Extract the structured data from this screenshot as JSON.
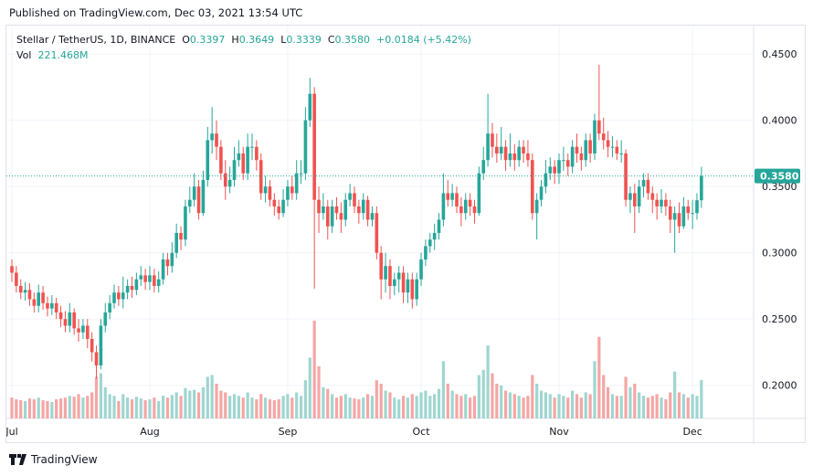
{
  "header": {
    "published": "Published on TradingView.com, Dec 03, 2021 13:54 UTC"
  },
  "legend": {
    "symbol": "Stellar / TetherUS, 1D, BINANCE",
    "o_label": "O",
    "o": "0.3397",
    "h_label": "H",
    "h": "0.3649",
    "l_label": "L",
    "l": "0.3339",
    "c_label": "C",
    "c": "0.3580",
    "change": "+0.0184 (+5.42%)",
    "vol_label": "Vol",
    "vol": "221.468M"
  },
  "brand": {
    "name": "TradingView"
  },
  "colors": {
    "up": "#26a69a",
    "down": "#ef5350",
    "up_volume": "#9fd6d0",
    "down_volume": "#f5a6a4",
    "grid": "#f0f3fa"
  },
  "chart_data": {
    "type": "candlestick",
    "symbol": "XLMUSDT",
    "interval": "1D",
    "first_date": "2021-07-01",
    "last_date": "2021-12-03",
    "price_ticks": [
      "0.4500",
      "0.4000",
      "0.3500",
      "0.3000",
      "0.2500",
      "0.2000"
    ],
    "ylim": [
      0.175,
      0.4715
    ],
    "time_ticks": [
      {
        "label": "Jul",
        "date": "2021-07-01"
      },
      {
        "label": "Aug",
        "date": "2021-08-01"
      },
      {
        "label": "Sep",
        "date": "2021-09-01"
      },
      {
        "label": "Oct",
        "date": "2021-10-01"
      },
      {
        "label": "Nov",
        "date": "2021-11-01"
      },
      {
        "label": "Dec",
        "date": "2021-12-01"
      }
    ],
    "last_price": "0.3580",
    "columns": [
      "open",
      "high",
      "low",
      "close",
      "volume_M"
    ],
    "candles": [
      [
        0.29,
        0.295,
        0.278,
        0.285,
        120
      ],
      [
        0.285,
        0.29,
        0.27,
        0.275,
        110
      ],
      [
        0.275,
        0.28,
        0.265,
        0.27,
        105
      ],
      [
        0.27,
        0.278,
        0.264,
        0.272,
        100
      ],
      [
        0.272,
        0.277,
        0.26,
        0.265,
        115
      ],
      [
        0.265,
        0.27,
        0.255,
        0.26,
        110
      ],
      [
        0.26,
        0.276,
        0.255,
        0.27,
        120
      ],
      [
        0.27,
        0.275,
        0.257,
        0.262,
        105
      ],
      [
        0.262,
        0.267,
        0.252,
        0.258,
        100
      ],
      [
        0.258,
        0.268,
        0.253,
        0.262,
        95
      ],
      [
        0.262,
        0.266,
        0.25,
        0.255,
        110
      ],
      [
        0.255,
        0.26,
        0.244,
        0.25,
        115
      ],
      [
        0.25,
        0.256,
        0.24,
        0.245,
        120
      ],
      [
        0.245,
        0.262,
        0.24,
        0.255,
        130
      ],
      [
        0.255,
        0.258,
        0.238,
        0.243,
        125
      ],
      [
        0.243,
        0.25,
        0.233,
        0.24,
        140
      ],
      [
        0.24,
        0.25,
        0.235,
        0.245,
        120
      ],
      [
        0.245,
        0.25,
        0.228,
        0.235,
        130
      ],
      [
        0.235,
        0.24,
        0.218,
        0.225,
        150
      ],
      [
        0.225,
        0.23,
        0.205,
        0.215,
        240
      ],
      [
        0.215,
        0.25,
        0.212,
        0.245,
        260
      ],
      [
        0.245,
        0.262,
        0.24,
        0.255,
        180
      ],
      [
        0.255,
        0.268,
        0.25,
        0.262,
        140
      ],
      [
        0.262,
        0.276,
        0.258,
        0.27,
        130
      ],
      [
        0.27,
        0.275,
        0.26,
        0.265,
        100
      ],
      [
        0.265,
        0.282,
        0.258,
        0.27,
        140
      ],
      [
        0.27,
        0.28,
        0.265,
        0.275,
        120
      ],
      [
        0.275,
        0.282,
        0.266,
        0.272,
        110
      ],
      [
        0.272,
        0.285,
        0.268,
        0.28,
        125
      ],
      [
        0.28,
        0.29,
        0.275,
        0.283,
        115
      ],
      [
        0.283,
        0.288,
        0.272,
        0.278,
        105
      ],
      [
        0.278,
        0.29,
        0.272,
        0.283,
        110
      ],
      [
        0.283,
        0.288,
        0.27,
        0.275,
        120
      ],
      [
        0.275,
        0.286,
        0.27,
        0.28,
        100
      ],
      [
        0.28,
        0.3,
        0.276,
        0.295,
        130
      ],
      [
        0.295,
        0.3,
        0.283,
        0.29,
        120
      ],
      [
        0.29,
        0.308,
        0.285,
        0.3,
        135
      ],
      [
        0.3,
        0.322,
        0.296,
        0.315,
        150
      ],
      [
        0.315,
        0.32,
        0.302,
        0.31,
        130
      ],
      [
        0.31,
        0.34,
        0.305,
        0.335,
        175
      ],
      [
        0.335,
        0.35,
        0.33,
        0.34,
        160
      ],
      [
        0.34,
        0.36,
        0.335,
        0.35,
        165
      ],
      [
        0.35,
        0.355,
        0.325,
        0.33,
        150
      ],
      [
        0.33,
        0.362,
        0.328,
        0.355,
        180
      ],
      [
        0.355,
        0.395,
        0.35,
        0.385,
        240
      ],
      [
        0.385,
        0.41,
        0.375,
        0.39,
        250
      ],
      [
        0.39,
        0.4,
        0.37,
        0.38,
        200
      ],
      [
        0.38,
        0.385,
        0.355,
        0.36,
        160
      ],
      [
        0.36,
        0.37,
        0.34,
        0.35,
        150
      ],
      [
        0.35,
        0.365,
        0.345,
        0.355,
        130
      ],
      [
        0.355,
        0.38,
        0.35,
        0.37,
        140
      ],
      [
        0.37,
        0.385,
        0.365,
        0.375,
        130
      ],
      [
        0.375,
        0.38,
        0.355,
        0.36,
        120
      ],
      [
        0.36,
        0.39,
        0.355,
        0.38,
        150
      ],
      [
        0.38,
        0.39,
        0.37,
        0.38,
        120
      ],
      [
        0.38,
        0.385,
        0.362,
        0.37,
        110
      ],
      [
        0.37,
        0.375,
        0.34,
        0.345,
        140
      ],
      [
        0.345,
        0.358,
        0.338,
        0.35,
        120
      ],
      [
        0.35,
        0.355,
        0.335,
        0.34,
        110
      ],
      [
        0.34,
        0.345,
        0.328,
        0.335,
        105
      ],
      [
        0.335,
        0.34,
        0.325,
        0.33,
        110
      ],
      [
        0.33,
        0.348,
        0.327,
        0.34,
        130
      ],
      [
        0.34,
        0.355,
        0.335,
        0.35,
        140
      ],
      [
        0.35,
        0.358,
        0.34,
        0.345,
        120
      ],
      [
        0.345,
        0.37,
        0.34,
        0.36,
        150
      ],
      [
        0.36,
        0.37,
        0.352,
        0.36,
        130
      ],
      [
        0.36,
        0.41,
        0.355,
        0.4,
        220
      ],
      [
        0.4,
        0.432,
        0.395,
        0.42,
        350
      ],
      [
        0.42,
        0.425,
        0.273,
        0.34,
        563
      ],
      [
        0.34,
        0.35,
        0.315,
        0.33,
        300
      ],
      [
        0.33,
        0.345,
        0.325,
        0.335,
        180
      ],
      [
        0.335,
        0.34,
        0.31,
        0.32,
        170
      ],
      [
        0.32,
        0.34,
        0.315,
        0.335,
        140
      ],
      [
        0.335,
        0.342,
        0.325,
        0.33,
        120
      ],
      [
        0.33,
        0.338,
        0.315,
        0.325,
        130
      ],
      [
        0.325,
        0.345,
        0.32,
        0.34,
        140
      ],
      [
        0.34,
        0.352,
        0.335,
        0.345,
        120
      ],
      [
        0.345,
        0.35,
        0.33,
        0.335,
        115
      ],
      [
        0.335,
        0.34,
        0.322,
        0.33,
        110
      ],
      [
        0.33,
        0.345,
        0.325,
        0.34,
        120
      ],
      [
        0.34,
        0.343,
        0.32,
        0.325,
        140
      ],
      [
        0.325,
        0.335,
        0.32,
        0.33,
        130
      ],
      [
        0.33,
        0.335,
        0.295,
        0.3,
        220
      ],
      [
        0.3,
        0.305,
        0.265,
        0.28,
        200
      ],
      [
        0.28,
        0.3,
        0.27,
        0.29,
        160
      ],
      [
        0.29,
        0.295,
        0.265,
        0.275,
        150
      ],
      [
        0.275,
        0.285,
        0.268,
        0.28,
        120
      ],
      [
        0.28,
        0.29,
        0.27,
        0.285,
        110
      ],
      [
        0.285,
        0.29,
        0.262,
        0.27,
        130
      ],
      [
        0.27,
        0.285,
        0.262,
        0.28,
        120
      ],
      [
        0.28,
        0.285,
        0.258,
        0.265,
        140
      ],
      [
        0.265,
        0.285,
        0.26,
        0.28,
        130
      ],
      [
        0.28,
        0.3,
        0.275,
        0.295,
        150
      ],
      [
        0.295,
        0.31,
        0.29,
        0.305,
        160
      ],
      [
        0.305,
        0.315,
        0.3,
        0.31,
        130
      ],
      [
        0.31,
        0.322,
        0.302,
        0.315,
        140
      ],
      [
        0.315,
        0.33,
        0.31,
        0.325,
        170
      ],
      [
        0.325,
        0.36,
        0.32,
        0.345,
        330
      ],
      [
        0.345,
        0.355,
        0.335,
        0.34,
        200
      ],
      [
        0.34,
        0.352,
        0.335,
        0.345,
        160
      ],
      [
        0.345,
        0.35,
        0.33,
        0.335,
        140
      ],
      [
        0.335,
        0.342,
        0.32,
        0.33,
        130
      ],
      [
        0.33,
        0.345,
        0.325,
        0.34,
        140
      ],
      [
        0.34,
        0.345,
        0.328,
        0.335,
        120
      ],
      [
        0.335,
        0.34,
        0.322,
        0.33,
        130
      ],
      [
        0.33,
        0.365,
        0.328,
        0.36,
        250
      ],
      [
        0.36,
        0.38,
        0.355,
        0.37,
        280
      ],
      [
        0.37,
        0.42,
        0.365,
        0.39,
        420
      ],
      [
        0.39,
        0.398,
        0.372,
        0.38,
        260
      ],
      [
        0.38,
        0.39,
        0.368,
        0.375,
        200
      ],
      [
        0.375,
        0.395,
        0.37,
        0.38,
        190
      ],
      [
        0.38,
        0.385,
        0.362,
        0.37,
        160
      ],
      [
        0.37,
        0.39,
        0.365,
        0.375,
        150
      ],
      [
        0.375,
        0.382,
        0.362,
        0.37,
        140
      ],
      [
        0.37,
        0.385,
        0.365,
        0.38,
        130
      ],
      [
        0.38,
        0.385,
        0.368,
        0.375,
        120
      ],
      [
        0.375,
        0.385,
        0.365,
        0.37,
        130
      ],
      [
        0.37,
        0.375,
        0.325,
        0.33,
        250
      ],
      [
        0.33,
        0.345,
        0.31,
        0.34,
        200
      ],
      [
        0.34,
        0.355,
        0.335,
        0.35,
        160
      ],
      [
        0.35,
        0.37,
        0.345,
        0.36,
        150
      ],
      [
        0.36,
        0.372,
        0.355,
        0.365,
        140
      ],
      [
        0.365,
        0.37,
        0.352,
        0.36,
        120
      ],
      [
        0.36,
        0.375,
        0.352,
        0.37,
        140
      ],
      [
        0.37,
        0.38,
        0.362,
        0.37,
        130
      ],
      [
        0.37,
        0.375,
        0.358,
        0.365,
        120
      ],
      [
        0.365,
        0.385,
        0.36,
        0.38,
        160
      ],
      [
        0.38,
        0.39,
        0.368,
        0.375,
        140
      ],
      [
        0.375,
        0.38,
        0.362,
        0.37,
        120
      ],
      [
        0.37,
        0.39,
        0.365,
        0.385,
        150
      ],
      [
        0.385,
        0.39,
        0.368,
        0.375,
        140
      ],
      [
        0.375,
        0.405,
        0.37,
        0.4,
        330
      ],
      [
        0.4,
        0.442,
        0.385,
        0.39,
        470
      ],
      [
        0.39,
        0.402,
        0.378,
        0.385,
        250
      ],
      [
        0.385,
        0.392,
        0.372,
        0.38,
        180
      ],
      [
        0.38,
        0.388,
        0.372,
        0.38,
        140
      ],
      [
        0.38,
        0.385,
        0.37,
        0.375,
        130
      ],
      [
        0.375,
        0.385,
        0.368,
        0.375,
        130
      ],
      [
        0.375,
        0.378,
        0.335,
        0.34,
        240
      ],
      [
        0.34,
        0.35,
        0.33,
        0.345,
        180
      ],
      [
        0.345,
        0.352,
        0.315,
        0.335,
        200
      ],
      [
        0.335,
        0.355,
        0.33,
        0.35,
        150
      ],
      [
        0.35,
        0.36,
        0.342,
        0.355,
        130
      ],
      [
        0.355,
        0.36,
        0.34,
        0.345,
        120
      ],
      [
        0.345,
        0.35,
        0.33,
        0.34,
        130
      ],
      [
        0.34,
        0.345,
        0.325,
        0.335,
        140
      ],
      [
        0.335,
        0.348,
        0.33,
        0.34,
        120
      ],
      [
        0.34,
        0.345,
        0.328,
        0.335,
        110
      ],
      [
        0.335,
        0.34,
        0.315,
        0.325,
        150
      ],
      [
        0.325,
        0.335,
        0.3,
        0.33,
        270
      ],
      [
        0.33,
        0.338,
        0.315,
        0.32,
        150
      ],
      [
        0.32,
        0.342,
        0.318,
        0.335,
        140
      ],
      [
        0.335,
        0.34,
        0.325,
        0.33,
        120
      ],
      [
        0.33,
        0.34,
        0.318,
        0.33,
        140
      ],
      [
        0.33,
        0.345,
        0.325,
        0.3397,
        130
      ],
      [
        0.3397,
        0.3649,
        0.3339,
        0.358,
        221.468
      ]
    ]
  }
}
